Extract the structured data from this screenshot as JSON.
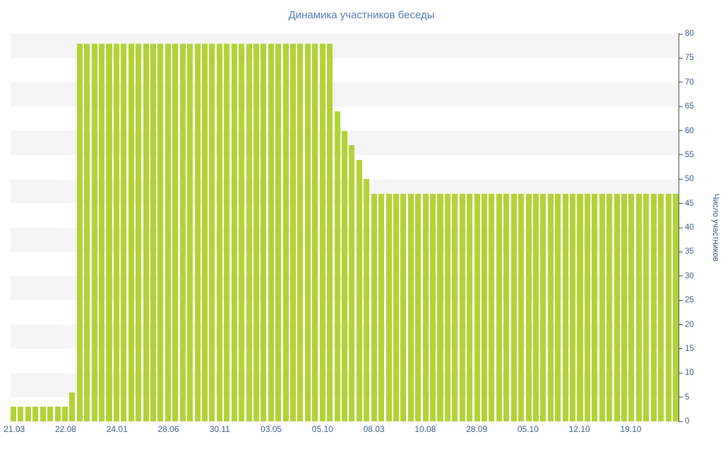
{
  "colors": {
    "bar": "#b3d235",
    "title_text": "#4f7cab",
    "axis_text": "#3d5c85",
    "axis_line": "#4a4a4a",
    "band_gray": "#f5f5f6",
    "band_white": "#ffffff"
  },
  "chart_data": {
    "type": "bar",
    "title": "Динамика участников беседы",
    "xlabel": "",
    "ylabel": "Число участников",
    "ylim": [
      0,
      80
    ],
    "ytick_step": 5,
    "grid": "horizontal-bands",
    "legend": "none",
    "y_axis_side": "right",
    "x_labels": [
      "21.03",
      "22.08",
      "24.01",
      "28.06",
      "30.11",
      "03.05",
      "05.10",
      "08.03",
      "10.08",
      "28.09",
      "05.10",
      "12.10",
      "19.10"
    ],
    "x_label_every": 7,
    "x_label_start_index": 0,
    "values": [
      3,
      3,
      3,
      3,
      3,
      3,
      3,
      3,
      6,
      78,
      78,
      78,
      78,
      78,
      78,
      78,
      78,
      78,
      78,
      78,
      78,
      78,
      78,
      78,
      78,
      78,
      78,
      78,
      78,
      78,
      78,
      78,
      78,
      78,
      78,
      78,
      78,
      78,
      78,
      78,
      78,
      78,
      78,
      78,
      64,
      60,
      57,
      54,
      50,
      47,
      47,
      47,
      47,
      47,
      47,
      47,
      47,
      47,
      47,
      47,
      47,
      47,
      47,
      47,
      47,
      47,
      47,
      47,
      47,
      47,
      47,
      47,
      47,
      47,
      47,
      47,
      47,
      47,
      47,
      47,
      47,
      47,
      47,
      47,
      47,
      47,
      47,
      47,
      47,
      47,
      47
    ]
  }
}
